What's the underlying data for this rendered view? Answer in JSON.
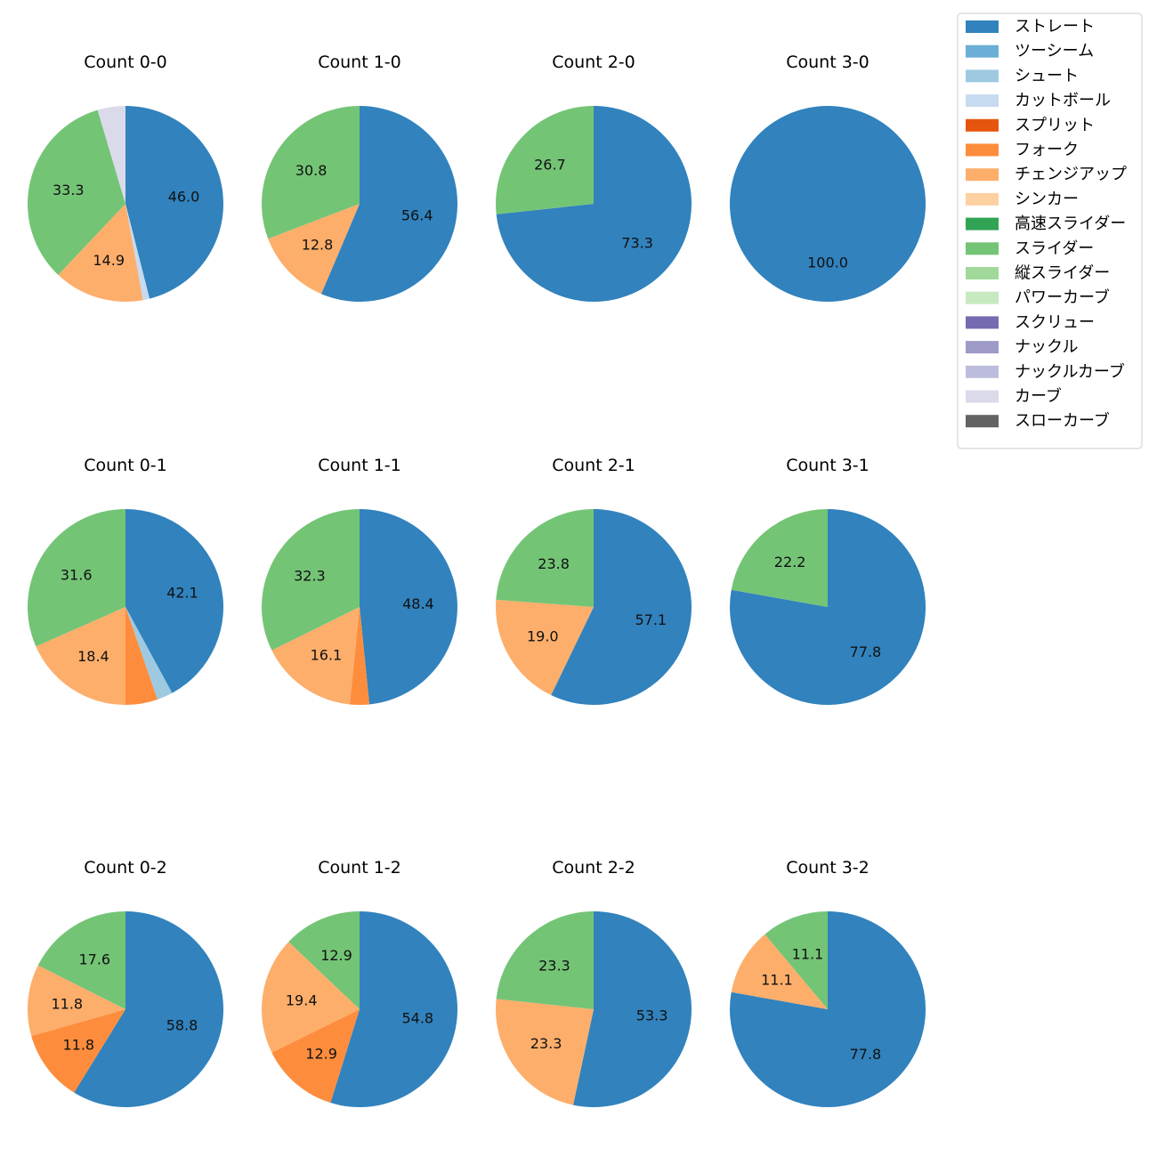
{
  "pitch_types": [
    {
      "name": "ストレート",
      "color": "#3182bd"
    },
    {
      "name": "ツーシーム",
      "color": "#6baed6"
    },
    {
      "name": "シュート",
      "color": "#9ecae1"
    },
    {
      "name": "カットボール",
      "color": "#c6dbef"
    },
    {
      "name": "スプリット",
      "color": "#e6550d"
    },
    {
      "name": "フォーク",
      "color": "#fd8d3c"
    },
    {
      "name": "チェンジアップ",
      "color": "#fdae6b"
    },
    {
      "name": "シンカー",
      "color": "#fdd0a2"
    },
    {
      "name": "高速スライダー",
      "color": "#31a354"
    },
    {
      "name": "スライダー",
      "color": "#74c476"
    },
    {
      "name": "縦スライダー",
      "color": "#a1d99b"
    },
    {
      "name": "パワーカーブ",
      "color": "#c7e9c0"
    },
    {
      "name": "スクリュー",
      "color": "#756bb1"
    },
    {
      "name": "ナックル",
      "color": "#9e9ac8"
    },
    {
      "name": "ナックルカーブ",
      "color": "#bcbddc"
    },
    {
      "name": "カーブ",
      "color": "#dadaeb"
    },
    {
      "name": "スローカーブ",
      "color": "#636363"
    }
  ],
  "chart_data": [
    {
      "type": "pie",
      "title": "Count 0-0",
      "slices": [
        {
          "type": "ストレート",
          "value": 46.0,
          "label": "46.0"
        },
        {
          "type": "カットボール",
          "value": 1.1,
          "label": ""
        },
        {
          "type": "チェンジアップ",
          "value": 14.9,
          "label": "14.9"
        },
        {
          "type": "スライダー",
          "value": 33.3,
          "label": "33.3"
        },
        {
          "type": "カーブ",
          "value": 4.6,
          "label": ""
        }
      ]
    },
    {
      "type": "pie",
      "title": "Count 1-0",
      "slices": [
        {
          "type": "ストレート",
          "value": 56.4,
          "label": "56.4"
        },
        {
          "type": "チェンジアップ",
          "value": 12.8,
          "label": "12.8"
        },
        {
          "type": "スライダー",
          "value": 30.8,
          "label": "30.8"
        }
      ]
    },
    {
      "type": "pie",
      "title": "Count 2-0",
      "slices": [
        {
          "type": "ストレート",
          "value": 73.3,
          "label": "73.3"
        },
        {
          "type": "スライダー",
          "value": 26.7,
          "label": "26.7"
        }
      ]
    },
    {
      "type": "pie",
      "title": "Count 3-0",
      "slices": [
        {
          "type": "ストレート",
          "value": 100.0,
          "label": "100.0"
        }
      ]
    },
    {
      "type": "pie",
      "title": "Count 0-1",
      "slices": [
        {
          "type": "ストレート",
          "value": 42.1,
          "label": "42.1"
        },
        {
          "type": "シュート",
          "value": 2.6,
          "label": ""
        },
        {
          "type": "フォーク",
          "value": 5.3,
          "label": ""
        },
        {
          "type": "チェンジアップ",
          "value": 18.4,
          "label": "18.4"
        },
        {
          "type": "スライダー",
          "value": 31.6,
          "label": "31.6"
        }
      ]
    },
    {
      "type": "pie",
      "title": "Count 1-1",
      "slices": [
        {
          "type": "ストレート",
          "value": 48.4,
          "label": "48.4"
        },
        {
          "type": "フォーク",
          "value": 3.2,
          "label": ""
        },
        {
          "type": "チェンジアップ",
          "value": 16.1,
          "label": "16.1"
        },
        {
          "type": "スライダー",
          "value": 32.3,
          "label": "32.3"
        }
      ]
    },
    {
      "type": "pie",
      "title": "Count 2-1",
      "slices": [
        {
          "type": "ストレート",
          "value": 57.1,
          "label": "57.1"
        },
        {
          "type": "チェンジアップ",
          "value": 19.0,
          "label": "19.0"
        },
        {
          "type": "スライダー",
          "value": 23.8,
          "label": "23.8"
        }
      ]
    },
    {
      "type": "pie",
      "title": "Count 3-1",
      "slices": [
        {
          "type": "ストレート",
          "value": 77.8,
          "label": "77.8"
        },
        {
          "type": "スライダー",
          "value": 22.2,
          "label": "22.2"
        }
      ]
    },
    {
      "type": "pie",
      "title": "Count 0-2",
      "slices": [
        {
          "type": "ストレート",
          "value": 58.8,
          "label": "58.8"
        },
        {
          "type": "フォーク",
          "value": 11.8,
          "label": "11.8"
        },
        {
          "type": "チェンジアップ",
          "value": 11.8,
          "label": "11.8"
        },
        {
          "type": "スライダー",
          "value": 17.6,
          "label": "17.6"
        }
      ]
    },
    {
      "type": "pie",
      "title": "Count 1-2",
      "slices": [
        {
          "type": "ストレート",
          "value": 54.8,
          "label": "54.8"
        },
        {
          "type": "フォーク",
          "value": 12.9,
          "label": "12.9"
        },
        {
          "type": "チェンジアップ",
          "value": 19.4,
          "label": "19.4"
        },
        {
          "type": "スライダー",
          "value": 12.9,
          "label": "12.9"
        }
      ]
    },
    {
      "type": "pie",
      "title": "Count 2-2",
      "slices": [
        {
          "type": "ストレート",
          "value": 53.3,
          "label": "53.3"
        },
        {
          "type": "チェンジアップ",
          "value": 23.3,
          "label": "23.3"
        },
        {
          "type": "スライダー",
          "value": 23.3,
          "label": "23.3"
        }
      ]
    },
    {
      "type": "pie",
      "title": "Count 3-2",
      "slices": [
        {
          "type": "ストレート",
          "value": 77.8,
          "label": "77.8"
        },
        {
          "type": "チェンジアップ",
          "value": 11.1,
          "label": "11.1"
        },
        {
          "type": "スライダー",
          "value": 11.1,
          "label": "11.1"
        }
      ]
    }
  ]
}
